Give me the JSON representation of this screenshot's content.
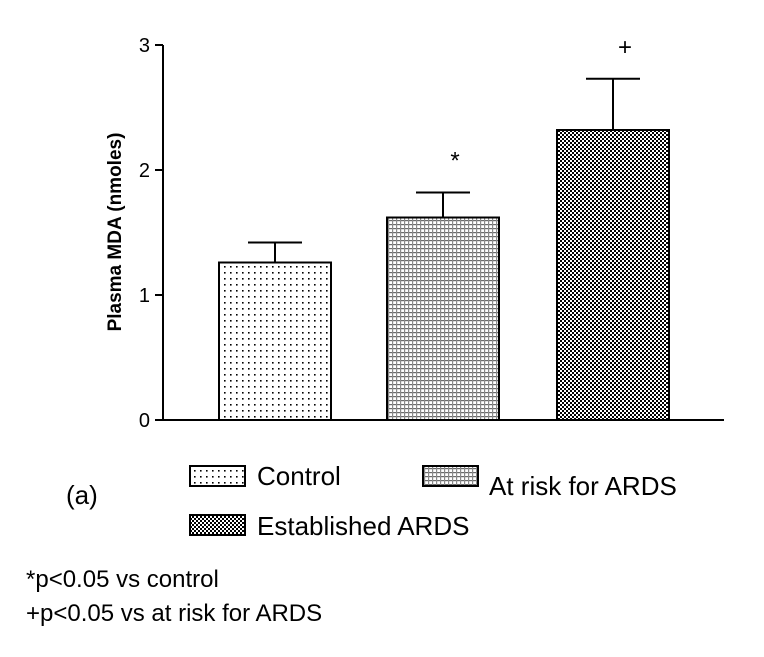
{
  "chart_data": {
    "type": "bar",
    "title": "",
    "xlabel": "",
    "ylabel": "Plasma MDA (nmoles)",
    "ylim": [
      0,
      3
    ],
    "yticks": [
      "0",
      "1",
      "2",
      "3"
    ],
    "grid": false,
    "legend_placement": "bottom",
    "series": [
      {
        "name": "Control",
        "values": [
          1.26
        ],
        "error": [
          0.16
        ],
        "pattern": "sparse-dots",
        "significance": ""
      },
      {
        "name": "At risk for ARDS",
        "values": [
          1.62
        ],
        "error": [
          0.2
        ],
        "pattern": "fine-grid",
        "significance": "*"
      },
      {
        "name": "Established ARDS",
        "values": [
          2.32
        ],
        "error": [
          0.41
        ],
        "pattern": "dense-check",
        "significance": "+"
      }
    ]
  },
  "panel_label": "(a)",
  "footnotes": [
    "*p<0.05 vs control",
    "+p<0.05 vs at risk for ARDS"
  ]
}
